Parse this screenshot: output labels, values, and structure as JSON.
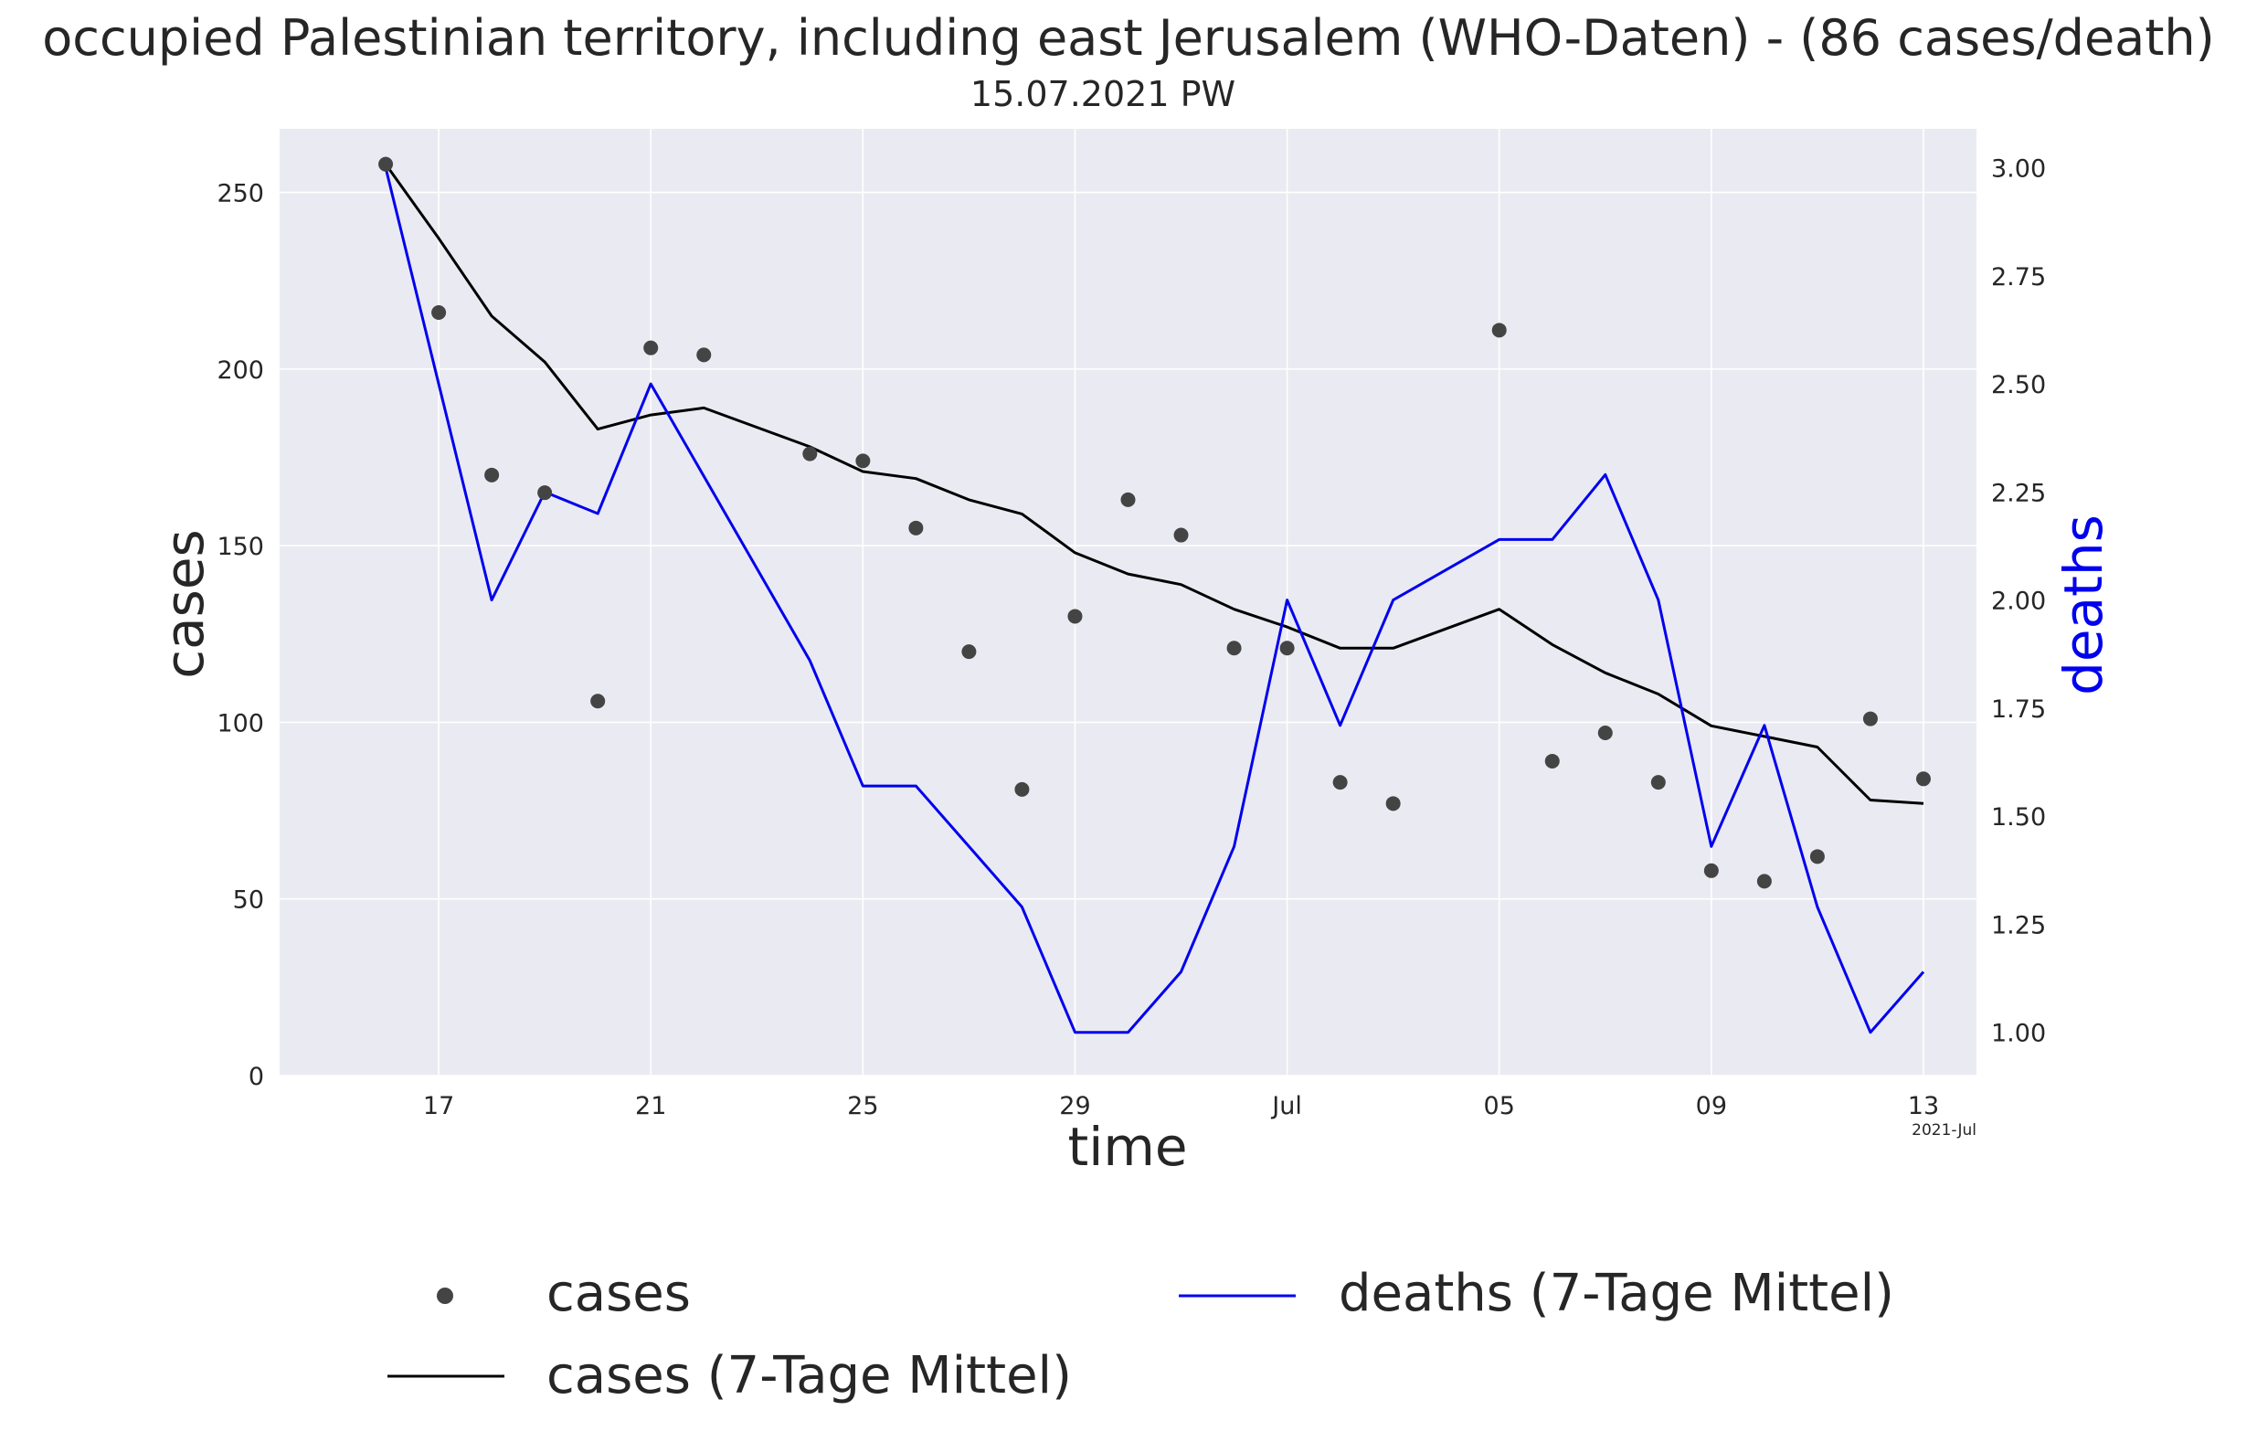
{
  "chart_data": {
    "type": "line",
    "title": "occupied Palestinian territory, including east Jerusalem (WHO-Daten) - (86 cases/death)",
    "subtitle": "15.07.2021 PW",
    "xlabel": "time",
    "ylabel_left": "cases",
    "ylabel_right": "deaths",
    "x_offset_label": "2021-Jul",
    "x_tick_labels": [
      "17",
      "21",
      "25",
      "29",
      "Jul",
      "05",
      "09",
      "13"
    ],
    "y_left_ticks": [
      "0",
      "50",
      "100",
      "150",
      "200",
      "250"
    ],
    "y_right_ticks": [
      "1.00",
      "1.25",
      "1.50",
      "1.75",
      "2.00",
      "2.25",
      "2.50",
      "2.75",
      "3.00"
    ],
    "ylim_left": [
      0,
      268
    ],
    "ylim_right": [
      0.9,
      3.09
    ],
    "xlim": [
      "2021-06-14",
      "2021-07-16"
    ],
    "grid": true,
    "colors": {
      "background": "#eaeaf2",
      "cases_points": "#444444",
      "cases_mean": "#000000",
      "deaths_mean": "#0000ee",
      "right_axis_label": "#0000ee"
    },
    "dates": [
      "2021-06-16",
      "2021-06-17",
      "2021-06-18",
      "2021-06-19",
      "2021-06-20",
      "2021-06-21",
      "2021-06-22",
      "2021-06-23",
      "2021-06-24",
      "2021-06-25",
      "2021-06-26",
      "2021-06-27",
      "2021-06-28",
      "2021-06-29",
      "2021-06-30",
      "2021-07-01",
      "2021-07-02",
      "2021-07-03",
      "2021-07-04",
      "2021-07-05",
      "2021-07-06",
      "2021-07-07",
      "2021-07-08",
      "2021-07-09",
      "2021-07-10",
      "2021-07-11",
      "2021-07-12",
      "2021-07-13",
      "2021-07-14",
      "2021-07-15"
    ],
    "series": [
      {
        "name": "cases",
        "kind": "scatter",
        "axis": "left",
        "values": [
          258,
          216,
          170,
          165,
          106,
          206,
          204,
          null,
          176,
          174,
          155,
          120,
          81,
          130,
          163,
          153,
          121,
          121,
          83,
          77,
          null,
          211,
          89,
          97,
          83,
          58,
          55,
          62,
          101,
          84
        ]
      },
      {
        "name": "cases (7-Tage Mittel)",
        "kind": "line",
        "axis": "left",
        "values": [
          258,
          237,
          215,
          202,
          183,
          187,
          189,
          null,
          178,
          171,
          169,
          163,
          159,
          148,
          142,
          139,
          132,
          127,
          121,
          121,
          null,
          132,
          122,
          114,
          108,
          99,
          96,
          93,
          78,
          77
        ]
      },
      {
        "name": "deaths (7-Tage Mittel)",
        "kind": "line",
        "axis": "right",
        "values": [
          3.0,
          2.5,
          2.0,
          2.25,
          2.2,
          2.5,
          null,
          null,
          1.86,
          1.57,
          1.57,
          1.43,
          1.29,
          1.0,
          1.0,
          1.14,
          1.43,
          2.0,
          1.71,
          2.0,
          null,
          2.14,
          2.14,
          2.29,
          2.0,
          1.43,
          1.71,
          1.29,
          1.0,
          1.14
        ]
      }
    ],
    "legend": {
      "position": "bottom",
      "entries": [
        "cases",
        "cases (7-Tage Mittel)",
        "deaths (7-Tage Mittel)"
      ]
    }
  }
}
